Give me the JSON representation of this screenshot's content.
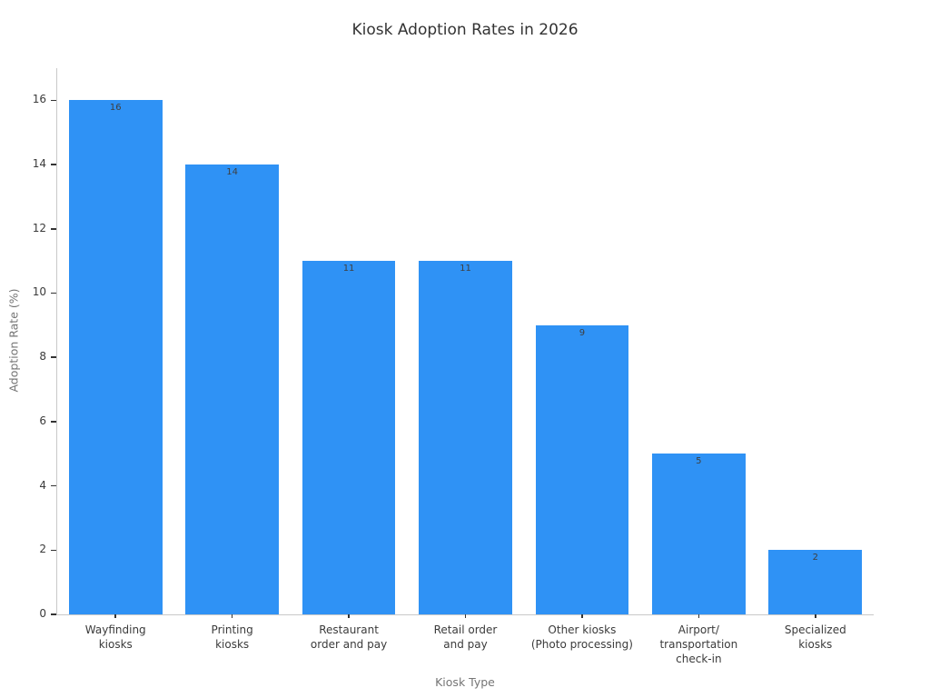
{
  "chart_data": {
    "type": "bar",
    "title": "Kiosk Adoption Rates in 2026",
    "xlabel": "Kiosk Type",
    "ylabel": "Adoption Rate (%)",
    "categories": [
      "Wayfinding\nkiosks",
      "Printing\nkiosks",
      "Restaurant\norder and pay",
      "Retail order\nand pay",
      "Other kiosks\n(Photo processing)",
      "Airport/\ntransportation\ncheck-in",
      "Specialized\nkiosks"
    ],
    "values": [
      16,
      14,
      11,
      11,
      9,
      5,
      2
    ],
    "bar_labels": [
      "16",
      "14",
      "11",
      "11",
      "9",
      "5",
      "2"
    ],
    "yticks": [
      0,
      2,
      4,
      6,
      8,
      10,
      12,
      14,
      16
    ],
    "ylim": [
      0,
      17
    ],
    "grid": false,
    "legend": "none",
    "bar_width_fraction": 0.8,
    "colors": {
      "bar": "#2F92F5",
      "title_text": "#333333",
      "tick_text": "#3b3b3b",
      "axis_label_text": "#757575",
      "spine": "#c9c9c9",
      "tick_mark": "#333333",
      "value_label_text": "#3f3f3f",
      "background": "#ffffff"
    }
  }
}
